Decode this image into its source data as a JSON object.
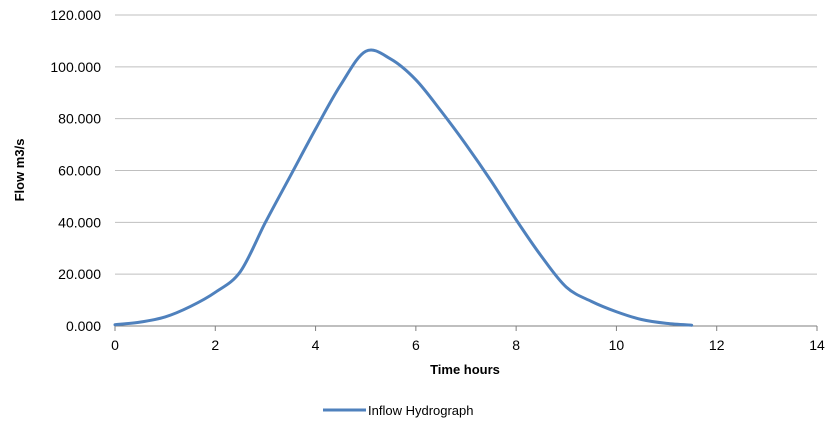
{
  "chart_data": {
    "type": "line",
    "title": "",
    "xlabel": "Time hours",
    "ylabel": "Flow m3/s",
    "xlim": [
      0,
      14
    ],
    "ylim": [
      0,
      120
    ],
    "x_ticks": [
      0,
      2,
      4,
      6,
      8,
      10,
      12,
      14
    ],
    "x_tick_labels": [
      "0",
      "2",
      "4",
      "6",
      "8",
      "10",
      "12",
      "14"
    ],
    "y_ticks": [
      0,
      20,
      40,
      60,
      80,
      100,
      120
    ],
    "y_tick_labels": [
      "0.000",
      "20.000",
      "40.000",
      "60.000",
      "80.000",
      "100.000",
      "120.000"
    ],
    "grid": "horizontal",
    "legend_position": "bottom",
    "colors": {
      "series": "#4f81bd",
      "grid": "#bfbfbf",
      "axis": "#7f7f7f"
    },
    "series": [
      {
        "name": "Inflow Hydrograph",
        "x": [
          0,
          0.5,
          1,
          1.5,
          2,
          2.5,
          3,
          3.5,
          4,
          4.5,
          5,
          5.5,
          6,
          6.5,
          7,
          7.5,
          8,
          8.5,
          9,
          9.5,
          10,
          10.5,
          11,
          11.5
        ],
        "values": [
          0.5,
          1.5,
          3.5,
          7.5,
          13,
          21,
          40,
          58,
          76,
          93,
          106,
          103,
          95,
          83,
          70,
          56,
          41,
          27,
          15,
          9.5,
          5.5,
          2.5,
          1,
          0.3
        ]
      }
    ]
  }
}
